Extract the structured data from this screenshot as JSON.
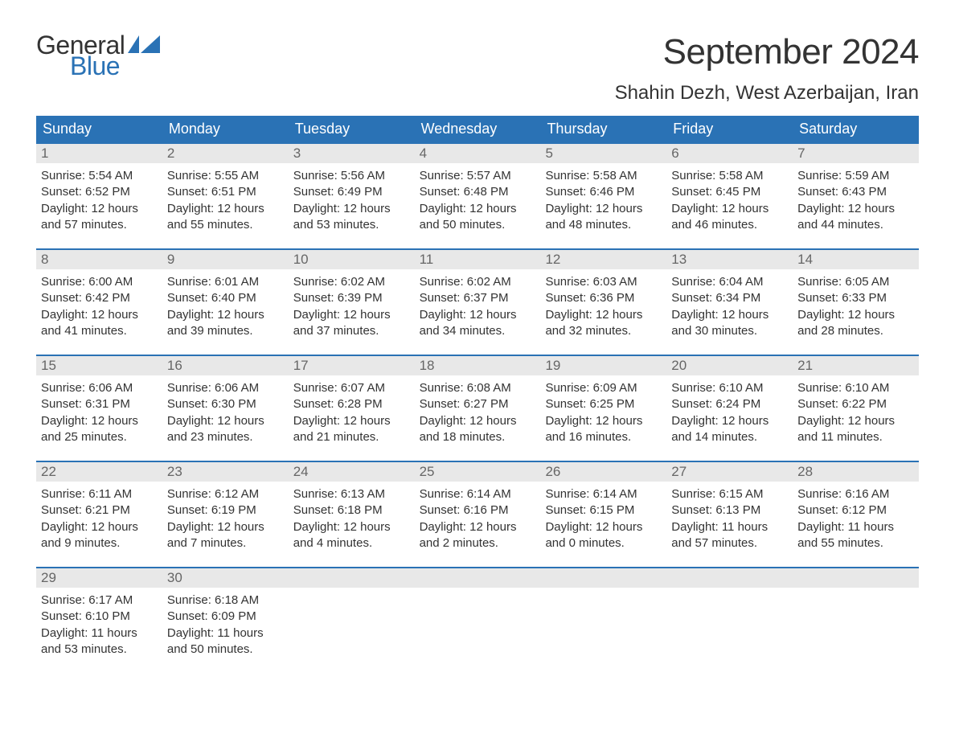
{
  "logo": {
    "word1": "General",
    "word2": "Blue",
    "text_color": "#333333",
    "accent_color": "#2a72b5"
  },
  "header": {
    "title": "September 2024",
    "location": "Shahin Dezh, West Azerbaijan, Iran",
    "title_fontsize": 44,
    "location_fontsize": 24
  },
  "calendar": {
    "header_bg": "#2a72b5",
    "header_text_color": "#ffffff",
    "daynum_bg": "#e8e8e8",
    "row_border_color": "#2a72b5",
    "body_text_color": "#333333",
    "weekdays": [
      "Sunday",
      "Monday",
      "Tuesday",
      "Wednesday",
      "Thursday",
      "Friday",
      "Saturday"
    ],
    "weeks": [
      [
        {
          "day": "1",
          "sunrise": "Sunrise: 5:54 AM",
          "sunset": "Sunset: 6:52 PM",
          "dl1": "Daylight: 12 hours",
          "dl2": "and 57 minutes."
        },
        {
          "day": "2",
          "sunrise": "Sunrise: 5:55 AM",
          "sunset": "Sunset: 6:51 PM",
          "dl1": "Daylight: 12 hours",
          "dl2": "and 55 minutes."
        },
        {
          "day": "3",
          "sunrise": "Sunrise: 5:56 AM",
          "sunset": "Sunset: 6:49 PM",
          "dl1": "Daylight: 12 hours",
          "dl2": "and 53 minutes."
        },
        {
          "day": "4",
          "sunrise": "Sunrise: 5:57 AM",
          "sunset": "Sunset: 6:48 PM",
          "dl1": "Daylight: 12 hours",
          "dl2": "and 50 minutes."
        },
        {
          "day": "5",
          "sunrise": "Sunrise: 5:58 AM",
          "sunset": "Sunset: 6:46 PM",
          "dl1": "Daylight: 12 hours",
          "dl2": "and 48 minutes."
        },
        {
          "day": "6",
          "sunrise": "Sunrise: 5:58 AM",
          "sunset": "Sunset: 6:45 PM",
          "dl1": "Daylight: 12 hours",
          "dl2": "and 46 minutes."
        },
        {
          "day": "7",
          "sunrise": "Sunrise: 5:59 AM",
          "sunset": "Sunset: 6:43 PM",
          "dl1": "Daylight: 12 hours",
          "dl2": "and 44 minutes."
        }
      ],
      [
        {
          "day": "8",
          "sunrise": "Sunrise: 6:00 AM",
          "sunset": "Sunset: 6:42 PM",
          "dl1": "Daylight: 12 hours",
          "dl2": "and 41 minutes."
        },
        {
          "day": "9",
          "sunrise": "Sunrise: 6:01 AM",
          "sunset": "Sunset: 6:40 PM",
          "dl1": "Daylight: 12 hours",
          "dl2": "and 39 minutes."
        },
        {
          "day": "10",
          "sunrise": "Sunrise: 6:02 AM",
          "sunset": "Sunset: 6:39 PM",
          "dl1": "Daylight: 12 hours",
          "dl2": "and 37 minutes."
        },
        {
          "day": "11",
          "sunrise": "Sunrise: 6:02 AM",
          "sunset": "Sunset: 6:37 PM",
          "dl1": "Daylight: 12 hours",
          "dl2": "and 34 minutes."
        },
        {
          "day": "12",
          "sunrise": "Sunrise: 6:03 AM",
          "sunset": "Sunset: 6:36 PM",
          "dl1": "Daylight: 12 hours",
          "dl2": "and 32 minutes."
        },
        {
          "day": "13",
          "sunrise": "Sunrise: 6:04 AM",
          "sunset": "Sunset: 6:34 PM",
          "dl1": "Daylight: 12 hours",
          "dl2": "and 30 minutes."
        },
        {
          "day": "14",
          "sunrise": "Sunrise: 6:05 AM",
          "sunset": "Sunset: 6:33 PM",
          "dl1": "Daylight: 12 hours",
          "dl2": "and 28 minutes."
        }
      ],
      [
        {
          "day": "15",
          "sunrise": "Sunrise: 6:06 AM",
          "sunset": "Sunset: 6:31 PM",
          "dl1": "Daylight: 12 hours",
          "dl2": "and 25 minutes."
        },
        {
          "day": "16",
          "sunrise": "Sunrise: 6:06 AM",
          "sunset": "Sunset: 6:30 PM",
          "dl1": "Daylight: 12 hours",
          "dl2": "and 23 minutes."
        },
        {
          "day": "17",
          "sunrise": "Sunrise: 6:07 AM",
          "sunset": "Sunset: 6:28 PM",
          "dl1": "Daylight: 12 hours",
          "dl2": "and 21 minutes."
        },
        {
          "day": "18",
          "sunrise": "Sunrise: 6:08 AM",
          "sunset": "Sunset: 6:27 PM",
          "dl1": "Daylight: 12 hours",
          "dl2": "and 18 minutes."
        },
        {
          "day": "19",
          "sunrise": "Sunrise: 6:09 AM",
          "sunset": "Sunset: 6:25 PM",
          "dl1": "Daylight: 12 hours",
          "dl2": "and 16 minutes."
        },
        {
          "day": "20",
          "sunrise": "Sunrise: 6:10 AM",
          "sunset": "Sunset: 6:24 PM",
          "dl1": "Daylight: 12 hours",
          "dl2": "and 14 minutes."
        },
        {
          "day": "21",
          "sunrise": "Sunrise: 6:10 AM",
          "sunset": "Sunset: 6:22 PM",
          "dl1": "Daylight: 12 hours",
          "dl2": "and 11 minutes."
        }
      ],
      [
        {
          "day": "22",
          "sunrise": "Sunrise: 6:11 AM",
          "sunset": "Sunset: 6:21 PM",
          "dl1": "Daylight: 12 hours",
          "dl2": "and 9 minutes."
        },
        {
          "day": "23",
          "sunrise": "Sunrise: 6:12 AM",
          "sunset": "Sunset: 6:19 PM",
          "dl1": "Daylight: 12 hours",
          "dl2": "and 7 minutes."
        },
        {
          "day": "24",
          "sunrise": "Sunrise: 6:13 AM",
          "sunset": "Sunset: 6:18 PM",
          "dl1": "Daylight: 12 hours",
          "dl2": "and 4 minutes."
        },
        {
          "day": "25",
          "sunrise": "Sunrise: 6:14 AM",
          "sunset": "Sunset: 6:16 PM",
          "dl1": "Daylight: 12 hours",
          "dl2": "and 2 minutes."
        },
        {
          "day": "26",
          "sunrise": "Sunrise: 6:14 AM",
          "sunset": "Sunset: 6:15 PM",
          "dl1": "Daylight: 12 hours",
          "dl2": "and 0 minutes."
        },
        {
          "day": "27",
          "sunrise": "Sunrise: 6:15 AM",
          "sunset": "Sunset: 6:13 PM",
          "dl1": "Daylight: 11 hours",
          "dl2": "and 57 minutes."
        },
        {
          "day": "28",
          "sunrise": "Sunrise: 6:16 AM",
          "sunset": "Sunset: 6:12 PM",
          "dl1": "Daylight: 11 hours",
          "dl2": "and 55 minutes."
        }
      ],
      [
        {
          "day": "29",
          "sunrise": "Sunrise: 6:17 AM",
          "sunset": "Sunset: 6:10 PM",
          "dl1": "Daylight: 11 hours",
          "dl2": "and 53 minutes."
        },
        {
          "day": "30",
          "sunrise": "Sunrise: 6:18 AM",
          "sunset": "Sunset: 6:09 PM",
          "dl1": "Daylight: 11 hours",
          "dl2": "and 50 minutes."
        },
        {
          "empty": true
        },
        {
          "empty": true
        },
        {
          "empty": true
        },
        {
          "empty": true
        },
        {
          "empty": true
        }
      ]
    ]
  }
}
